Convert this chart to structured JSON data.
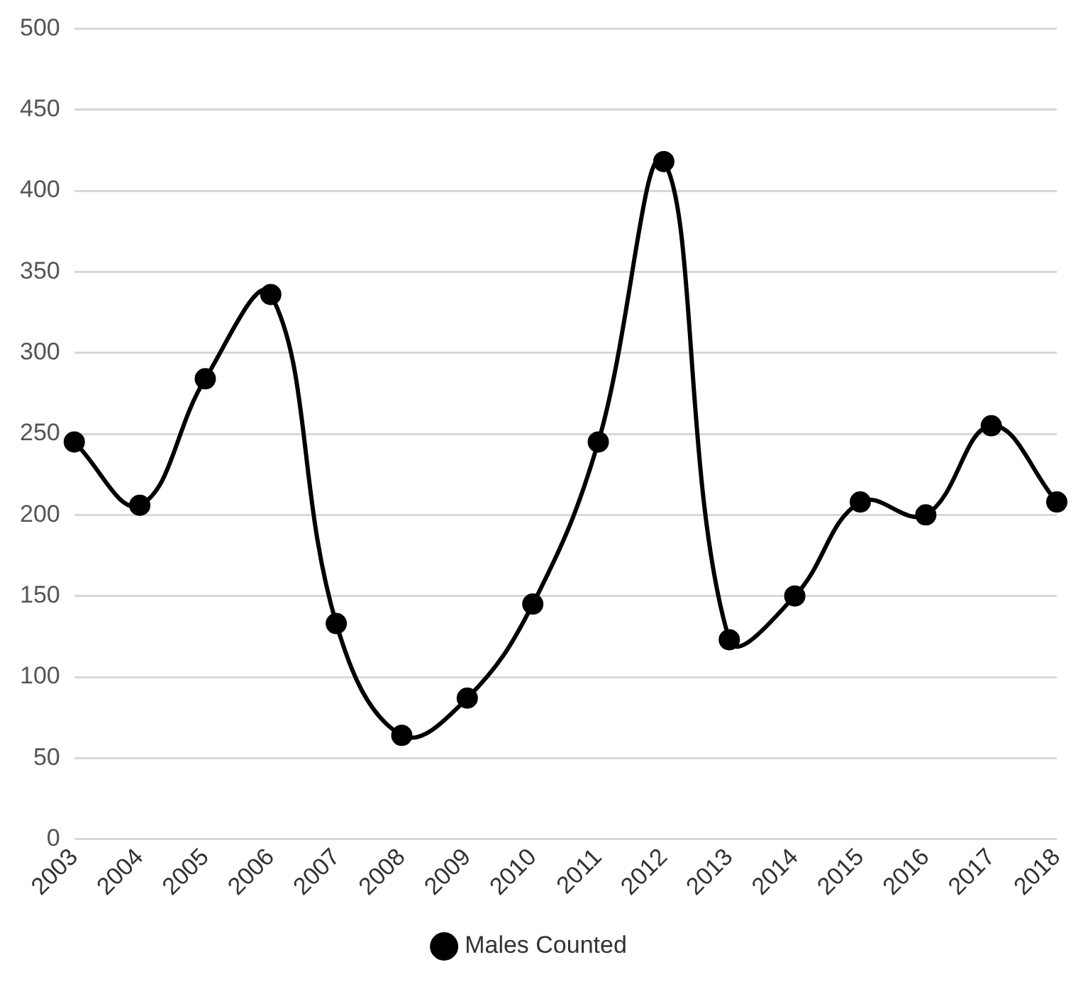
{
  "chart_data": {
    "type": "line",
    "categories": [
      "2003",
      "2004",
      "2005",
      "2006",
      "2007",
      "2008",
      "2009",
      "2010",
      "2011",
      "2012",
      "2013",
      "2014",
      "2015",
      "2016",
      "2017",
      "2018"
    ],
    "series": [
      {
        "name": "Males Counted",
        "color": "#000000",
        "values": [
          245,
          206,
          284,
          336,
          133,
          64,
          87,
          145,
          245,
          418,
          123,
          150,
          208,
          200,
          255,
          208
        ]
      }
    ],
    "ylim": [
      0,
      500
    ],
    "yticks": [
      0,
      50,
      100,
      150,
      200,
      250,
      300,
      350,
      400,
      450,
      500
    ],
    "grid": "y",
    "legend": "bottom",
    "marker": "circle",
    "line_style": "solid"
  }
}
